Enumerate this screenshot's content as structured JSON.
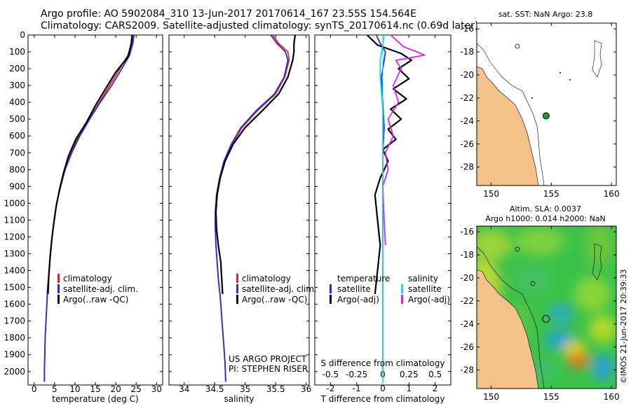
{
  "header": {
    "line1": "Argo profile: AO 5902084_310 13-Jun-2017 20170614_167 23.55S 154.564E",
    "line2": "Climatology: CARS2009. Satellite-adjusted climatology: synTS_20170614.nc (0.69d later)"
  },
  "colors": {
    "clim": "#e8231f",
    "sat": "#1f2fe0",
    "argo": "#000000",
    "sat_s": "#20d8e8",
    "argo_s": "#e020e0",
    "land": "#f5c38a",
    "ocean": "#ffffff",
    "marker": "#1fa01f"
  },
  "chart_data": [
    {
      "type": "line",
      "panel": "temperature",
      "xlabel": "temperature (deg C)",
      "xlim": [
        -1.5,
        31.5
      ],
      "xticks": [
        0,
        5,
        10,
        15,
        20,
        25,
        30
      ],
      "ylim": [
        0,
        2080
      ],
      "yticks": [
        0,
        100,
        200,
        300,
        400,
        500,
        600,
        700,
        800,
        900,
        1000,
        1100,
        1200,
        1300,
        1400,
        1500,
        1600,
        1700,
        1800,
        1900,
        2000
      ],
      "series": [
        {
          "name": "climatology",
          "color": "#e8231f",
          "x": [
            24.2,
            24.0,
            23.0,
            21.0,
            18.5,
            16.0,
            13.5,
            11.0,
            9.0,
            7.5,
            6.5,
            5.5,
            4.9,
            4.4,
            4.0,
            3.7,
            3.3,
            3.1,
            2.9,
            2.7,
            2.6,
            2.5,
            2.5
          ],
          "y": [
            0,
            50,
            120,
            200,
            300,
            400,
            500,
            600,
            700,
            800,
            900,
            1000,
            1100,
            1200,
            1300,
            1400,
            1500,
            1600,
            1700,
            1800,
            1900,
            2000,
            2060
          ]
        },
        {
          "name": "satellite-adj. clim.",
          "color": "#1f2fe0",
          "x": [
            24.5,
            24.2,
            23.4,
            21.5,
            19.0,
            16.2,
            13.6,
            11.2,
            9.2,
            7.6,
            6.5,
            5.5,
            4.9,
            4.4,
            4.0,
            3.7,
            3.3,
            3.1,
            2.9,
            2.7,
            2.6,
            2.5,
            2.5
          ],
          "y": [
            0,
            50,
            120,
            200,
            300,
            400,
            500,
            600,
            700,
            800,
            900,
            1000,
            1100,
            1200,
            1300,
            1400,
            1500,
            1600,
            1700,
            1800,
            1900,
            2000,
            2060
          ]
        },
        {
          "name": "Argo(..raw -QC)",
          "color": "#000000",
          "x": [
            24.0,
            23.8,
            23.0,
            20.0,
            17.5,
            15.0,
            12.8,
            10.2,
            8.4,
            7.2,
            6.2,
            5.4,
            4.8,
            4.3,
            3.9,
            3.6,
            3.4
          ],
          "y": [
            0,
            50,
            130,
            220,
            320,
            420,
            520,
            620,
            720,
            820,
            920,
            1020,
            1120,
            1220,
            1320,
            1420,
            1540
          ]
        }
      ],
      "legend": [
        "climatology",
        "satellite-adj. clim.",
        "Argo(..raw -QC)"
      ]
    },
    {
      "type": "line",
      "panel": "salinity",
      "xlabel": "salinity",
      "xlim": [
        33.75,
        36.05
      ],
      "xticks": [
        34,
        34.5,
        35,
        35.5,
        36
      ],
      "xtick_labels": [
        "34",
        "34.5",
        "35",
        "35.5",
        "36"
      ],
      "ylim": [
        0,
        2080
      ],
      "series": [
        {
          "name": "climatology",
          "color": "#e8231f",
          "x": [
            35.45,
            35.55,
            35.7,
            35.72,
            35.65,
            35.5,
            35.2,
            34.95,
            34.78,
            34.66,
            34.58,
            34.53,
            34.51,
            34.51,
            34.52,
            34.54,
            34.56,
            34.59,
            34.61,
            34.63,
            34.65,
            34.67,
            34.68
          ],
          "y": [
            0,
            50,
            100,
            150,
            250,
            350,
            450,
            550,
            650,
            750,
            850,
            950,
            1050,
            1150,
            1250,
            1350,
            1450,
            1550,
            1650,
            1750,
            1850,
            1950,
            2060
          ]
        },
        {
          "name": "satellite-adj. clim.",
          "color": "#1f2fe0",
          "x": [
            35.42,
            35.52,
            35.66,
            35.7,
            35.64,
            35.48,
            35.18,
            34.93,
            34.77,
            34.65,
            34.58,
            34.53,
            34.51,
            34.51,
            34.52,
            34.54,
            34.56,
            34.59,
            34.61,
            34.63,
            34.65,
            34.67,
            34.68
          ],
          "y": [
            0,
            50,
            100,
            150,
            250,
            350,
            450,
            550,
            650,
            750,
            850,
            950,
            1050,
            1150,
            1250,
            1350,
            1450,
            1550,
            1650,
            1750,
            1850,
            1950,
            2060
          ]
        },
        {
          "name": "Argo(..raw -QC)",
          "color": "#000000",
          "x": [
            35.82,
            35.8,
            35.8,
            35.78,
            35.7,
            35.55,
            35.28,
            35.0,
            34.8,
            34.67,
            34.59,
            34.54,
            34.52,
            34.53,
            34.56,
            34.6,
            34.63
          ],
          "y": [
            0,
            50,
            100,
            150,
            250,
            350,
            450,
            550,
            650,
            750,
            850,
            950,
            1050,
            1150,
            1250,
            1350,
            1540
          ]
        }
      ],
      "legend": [
        "climatology",
        "satellite-adj. clim.",
        "Argo(..raw -QC)"
      ],
      "annotation": [
        "US ARGO PROJECT",
        "PI: STEPHEN RISER"
      ]
    },
    {
      "type": "line",
      "panel": "difference",
      "xlabel": "T difference from climatology",
      "xlabel_top": "S difference from climatology",
      "xlim": [
        -2.6,
        2.6
      ],
      "xticks": [
        -2,
        -1,
        0,
        1,
        2
      ],
      "sticks_labels": [
        "-0.5",
        "-0.25",
        "0",
        "0.25",
        "0.5"
      ],
      "ylim": [
        0,
        2080
      ],
      "series": [
        {
          "name": "temperature satellite",
          "color": "#1f2fe0",
          "x": [
            -0.25,
            -0.1,
            0.1,
            0.05,
            -0.05,
            0.0,
            0.05,
            0.0,
            0.0,
            0.0,
            0.0,
            0.0,
            0.0,
            0.0,
            0.0
          ],
          "y": [
            0,
            50,
            100,
            150,
            250,
            400,
            550,
            700,
            850,
            1000,
            1200,
            1400,
            1600,
            1800,
            2000
          ]
        },
        {
          "name": "temperature Argo(-adj)",
          "color": "#000000",
          "x": [
            -0.6,
            -0.2,
            0.7,
            1.1,
            0.6,
            1.0,
            0.4,
            0.9,
            0.3,
            0.7,
            0.2,
            0.5,
            0.0,
            0.2,
            -0.1,
            -0.3,
            -0.2,
            -0.1,
            -0.2,
            -0.3
          ],
          "y": [
            0,
            60,
            110,
            150,
            200,
            260,
            320,
            380,
            440,
            500,
            560,
            620,
            680,
            750,
            850,
            950,
            1100,
            1250,
            1400,
            1540
          ]
        },
        {
          "name": "salinity satellite",
          "color": "#20d8e8",
          "x": [
            0.05,
            0.0,
            -0.1,
            -0.1,
            -0.05,
            0.0,
            0.0,
            0.0,
            0.0,
            0.0,
            0.0,
            0.0,
            0.0,
            0.0,
            0.0,
            0.0
          ],
          "y": [
            0,
            60,
            150,
            250,
            350,
            450,
            550,
            700,
            850,
            1000,
            1200,
            1400,
            1600,
            1800,
            2000,
            2060
          ]
        },
        {
          "name": "salinity Argo(-adj)",
          "color": "#e020e0",
          "x": [
            0.3,
            0.8,
            1.3,
            1.6,
            0.5,
            0.7,
            0.4,
            0.6,
            0.2,
            0.4,
            0.1,
            0.2,
            0.0,
            0.05,
            0.1
          ],
          "y": [
            0,
            70,
            100,
            120,
            150,
            200,
            300,
            400,
            500,
            600,
            700,
            800,
            900,
            1100,
            1250
          ]
        }
      ],
      "legend_left_title": "temperature",
      "legend_right_title": "salinity",
      "legend_left": [
        "satellite",
        "Argo(-adj)"
      ],
      "legend_right": [
        "satellite",
        "Argo(-adj)"
      ]
    },
    {
      "type": "map",
      "panel": "sst_map",
      "title": "sat. SST: NaN Argo: 23.8",
      "lon_ticks": [
        150,
        155,
        160
      ],
      "lat_ticks": [
        -16,
        -18,
        -20,
        -22,
        -24,
        -26,
        -28
      ],
      "lon_range": [
        148.8,
        160.4
      ],
      "lat_range": [
        -15.5,
        -29.6
      ],
      "float": {
        "lon": 154.564,
        "lat": -23.55
      }
    },
    {
      "type": "heatmap",
      "panel": "sla_map",
      "title1": "Altim. SLA: 0.0037",
      "title2": "Argo h1000: 0.014 h2000: NaN",
      "lon_ticks": [
        150,
        155,
        160
      ],
      "lat_ticks": [
        -16,
        -18,
        -20,
        -22,
        -24,
        -26,
        -28
      ],
      "lon_range": [
        148.8,
        160.4
      ],
      "lat_range": [
        -15.5,
        -29.6
      ],
      "float": {
        "lon": 154.564,
        "lat": -23.55
      }
    }
  ],
  "watermark": "©IMOS 21-Jun-2017 20:39:33"
}
